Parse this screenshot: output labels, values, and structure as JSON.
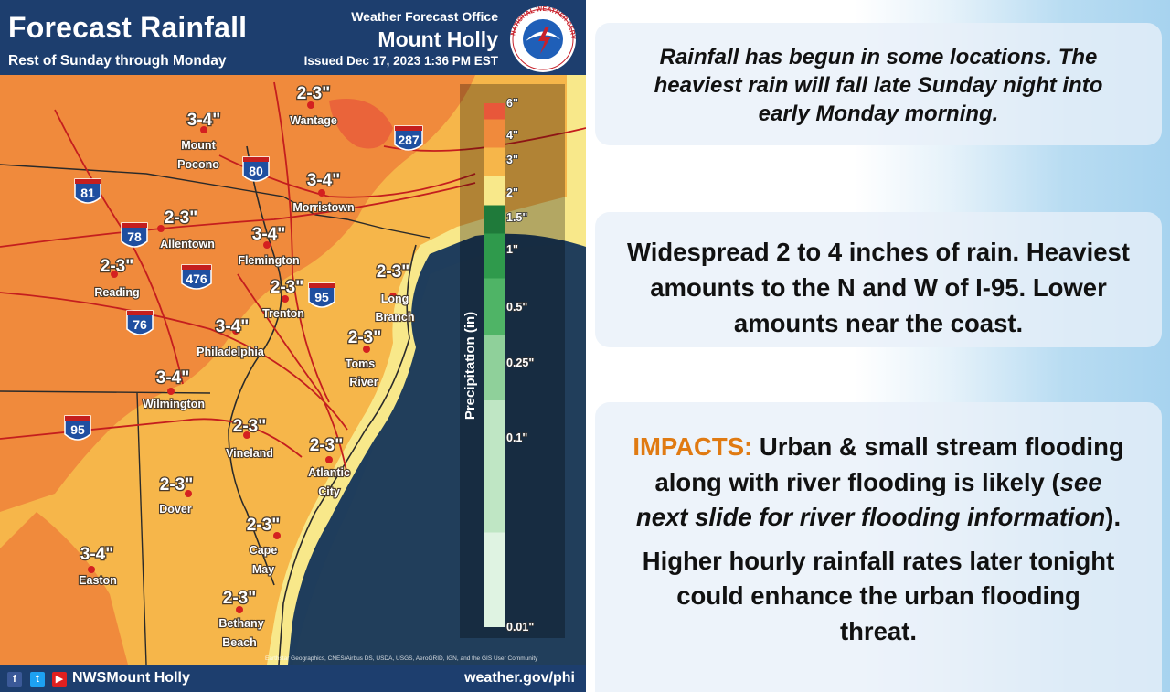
{
  "header": {
    "title": "Forecast Rainfall",
    "subtitle": "Rest of Sunday through Monday",
    "office_label": "Weather Forecast Office",
    "office_name": "Mount Holly",
    "issued": "Issued Dec 17, 2023 1:36 PM EST",
    "logo_text": "NATIONAL WEATHER SERVICE"
  },
  "legend": {
    "title": "Precipitation (in)",
    "levels": [
      {
        "label": "6\"",
        "color": "#e8573a"
      },
      {
        "label": "4\"",
        "color": "#f08a3c"
      },
      {
        "label": "3\"",
        "color": "#f6b64a"
      },
      {
        "label": "2\"",
        "color": "#f8e88a"
      },
      {
        "label": "1.5\"",
        "color": "#1f7a3a"
      },
      {
        "label": "1\"",
        "color": "#2f9a4c"
      },
      {
        "label": "0.5\"",
        "color": "#4fb466"
      },
      {
        "label": "0.25\"",
        "color": "#8fd09a"
      },
      {
        "label": "0.1\"",
        "color": "#bfe6c4"
      },
      {
        "label": "0.01\"",
        "color": "#dff3e2"
      }
    ]
  },
  "cities": [
    {
      "name": "Wantage",
      "amount": "2-3\""
    },
    {
      "name": "Mount Pocono",
      "amount": "3-4\""
    },
    {
      "name": "Morristown",
      "amount": "3-4\""
    },
    {
      "name": "Allentown",
      "amount": "2-3\""
    },
    {
      "name": "Flemington",
      "amount": "3-4\""
    },
    {
      "name": "Reading",
      "amount": "2-3\""
    },
    {
      "name": "Trenton",
      "amount": "2-3\""
    },
    {
      "name": "Long Branch",
      "amount": "2-3\""
    },
    {
      "name": "Philadelphia",
      "amount": "3-4\""
    },
    {
      "name": "Toms River",
      "amount": "2-3\""
    },
    {
      "name": "Wilmington",
      "amount": "3-4\""
    },
    {
      "name": "Vineland",
      "amount": "2-3\""
    },
    {
      "name": "Atlantic City",
      "amount": "2-3\""
    },
    {
      "name": "Dover",
      "amount": "2-3\""
    },
    {
      "name": "Cape May",
      "amount": "2-3\""
    },
    {
      "name": "Easton",
      "amount": "3-4\""
    },
    {
      "name": "Bethany Beach",
      "amount": "2-3\""
    }
  ],
  "interstates": [
    "81",
    "80",
    "287",
    "78",
    "476",
    "95",
    "76",
    "95"
  ],
  "map_credit": "Earthstar Geographics, CNES/Airbus DS, USDA, USGS, AeroGRID, IGN, and the GIS User Community",
  "footer": {
    "handle": "NWSMount Holly",
    "url": "weather.gov/phi"
  },
  "text_boxes": {
    "summary": "Rainfall has begun in some locations. The heaviest rain will fall late Sunday night into early Monday morning.",
    "amounts": "Widespread 2 to 4 inches of rain. Heaviest amounts to the N and W of I-95. Lower amounts near the coast.",
    "impacts_label": "IMPACTS:",
    "impacts_text_1": "Urban & small stream flooding along with river flooding is likely (",
    "impacts_italic": "see next slide for river flooding information",
    "impacts_text_2": ").",
    "rates": "Higher hourly rainfall rates later tonight could enhance the urban flooding threat."
  },
  "colors": {
    "header_bg": "#1d3e6e",
    "ocean": "#1f3d5c",
    "rain_3_4": "#f08a3c",
    "rain_2_3": "#f6b64a",
    "rain_1_2": "#f8e88a",
    "impacts_accent": "#e07a12"
  }
}
